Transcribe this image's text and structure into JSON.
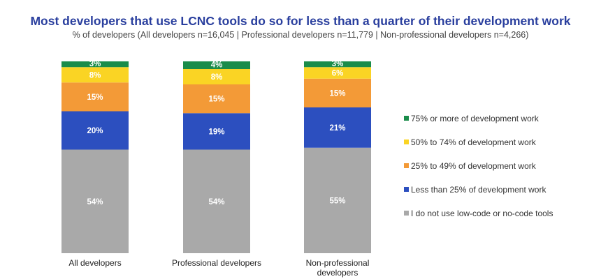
{
  "colors": {
    "title": "#2a3f9e",
    "s75": "#1a8c4a",
    "s50": "#fad424",
    "s25": "#f39a37",
    "sLess": "#2c4fbf",
    "sNone": "#a9a9a9"
  },
  "chart_data": {
    "type": "bar",
    "stacked": true,
    "title": "Most developers that use LCNC tools do so for less than a quarter of their development work",
    "subtitle": "% of developers (All developers n=16,045 | Professional developers n=11,779 | Non-professional developers n=4,266)",
    "categories": [
      [
        "All developers"
      ],
      [
        "Professional developers"
      ],
      [
        "Non-professional",
        "developers"
      ]
    ],
    "series": [
      {
        "name": "I do not use low-code or no-code tools",
        "color_key": "sNone",
        "values": [
          54,
          54,
          55
        ],
        "labels": [
          "54%",
          "54%",
          "55%"
        ]
      },
      {
        "name": "Less than 25% of development work",
        "color_key": "sLess",
        "values": [
          20,
          19,
          21
        ],
        "labels": [
          "20%",
          "19%",
          "21%"
        ]
      },
      {
        "name": "25% to 49% of development work",
        "color_key": "s25",
        "values": [
          15,
          15,
          15
        ],
        "labels": [
          "15%",
          "15%",
          "15%"
        ]
      },
      {
        "name": "50% to 74% of development work",
        "color_key": "s50",
        "values": [
          8,
          8,
          6
        ],
        "labels": [
          "8%",
          "8%",
          "6%"
        ]
      },
      {
        "name": "75% or more of development work",
        "color_key": "s75",
        "values": [
          3,
          4,
          3
        ],
        "labels": [
          "3%",
          "4%",
          "3%"
        ]
      }
    ],
    "legend_order": [
      4,
      3,
      2,
      1,
      0
    ],
    "legend_position": "right",
    "ylim": [
      0,
      100
    ]
  }
}
